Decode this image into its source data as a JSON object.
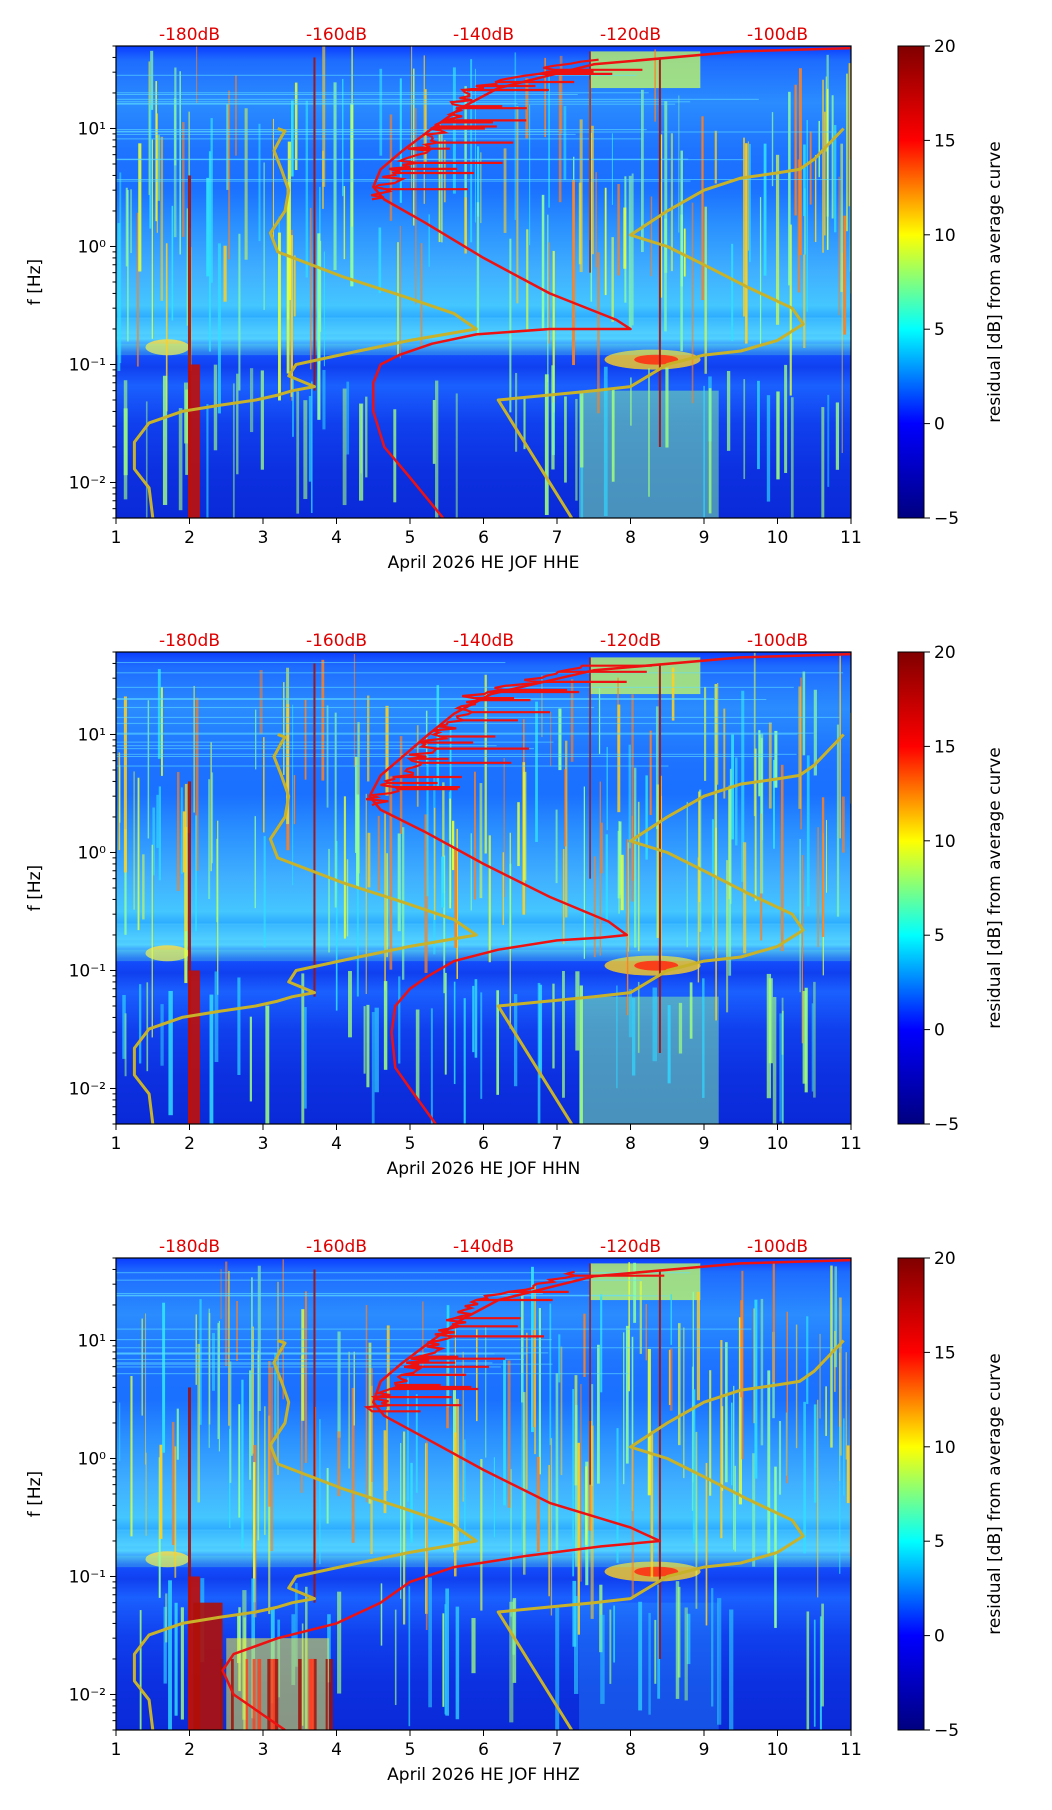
{
  "colormap": {
    "name": "jet",
    "stops": [
      "#000080",
      "#0000ff",
      "#00ffff",
      "#ffff00",
      "#ff0000",
      "#800000"
    ]
  },
  "colors": {
    "average_curve": "#ee1111",
    "model_curves": "#c8b22a",
    "db_labels": "#e00000"
  },
  "chart_data": [
    {
      "type": "heatmap",
      "title": "April 2026 HE JOF  HHE",
      "xlabel": "April 2026 HE JOF  HHE",
      "ylabel": "f [Hz]",
      "xlim": [
        1,
        11
      ],
      "ylim": [
        0.005,
        50
      ],
      "yscale": "log",
      "xticks": [
        1,
        2,
        3,
        4,
        5,
        6,
        7,
        8,
        9,
        10,
        11
      ],
      "xtick_labels": [
        "1",
        "2",
        "3",
        "4",
        "5",
        "6",
        "7",
        "8",
        "9",
        "10",
        "11"
      ],
      "yticks": [
        0.01,
        0.1,
        1,
        10
      ],
      "ytick_labels": [
        "10⁻²",
        "10⁻¹",
        "10⁰",
        "10¹"
      ],
      "db_scale_labels": [
        "-180dB",
        "-160dB",
        "-140dB",
        "-120dB",
        "-100dB"
      ],
      "db_scale_positions": [
        2,
        4,
        6,
        8,
        10
      ],
      "colorbar": {
        "label": "residual [dB] from average curve",
        "range": [
          -5,
          20
        ],
        "ticks": [
          -5,
          0,
          5,
          10,
          15,
          20
        ],
        "tick_labels": [
          "−5",
          "0",
          "5",
          "10",
          "15",
          "20"
        ]
      },
      "average_curve": {
        "x": [
          5.45,
          5.0,
          4.65,
          4.5,
          4.5,
          4.6,
          4.85,
          5.3,
          5.9,
          6.9,
          7.6,
          8.0,
          7.8,
          6.9,
          6.0,
          5.2,
          4.65,
          4.5,
          4.6,
          4.9,
          5.3,
          5.7,
          6.2,
          7.5,
          9.5,
          11.0
        ],
        "f": [
          0.005,
          0.011,
          0.02,
          0.04,
          0.07,
          0.1,
          0.12,
          0.15,
          0.18,
          0.2,
          0.2,
          0.2,
          0.24,
          0.4,
          0.8,
          1.6,
          2.5,
          3.2,
          4.5,
          6.5,
          10,
          15,
          22,
          35,
          45,
          48
        ]
      },
      "model_curves": [
        {
          "name": "low noise model",
          "x": [
            1.5,
            1.45,
            1.25,
            1.25,
            1.45,
            1.9,
            2.4,
            2.9,
            3.2,
            3.4,
            3.7,
            3.35,
            3.45,
            4.3,
            5.0,
            5.9,
            5.6,
            4.9,
            4.1,
            3.2,
            3.1,
            3.3,
            3.35,
            3.25,
            3.15,
            3.25,
            3.3,
            3.2
          ],
          "f": [
            0.005,
            0.009,
            0.013,
            0.022,
            0.032,
            0.04,
            0.045,
            0.05,
            0.055,
            0.06,
            0.065,
            0.08,
            0.1,
            0.13,
            0.16,
            0.2,
            0.27,
            0.38,
            0.55,
            0.9,
            1.3,
            2.0,
            3.0,
            4.5,
            6.5,
            8.5,
            9.5,
            10
          ]
        },
        {
          "name": "high noise model",
          "x": [
            7.2,
            6.2,
            7.5,
            8.0,
            8.5,
            9.0,
            9.5,
            10.0,
            10.35,
            10.2,
            9.6,
            9.0,
            8.5,
            8.0,
            8.5,
            9.0,
            9.5,
            10.0,
            10.3,
            10.5,
            10.9
          ],
          "f": [
            0.005,
            0.05,
            0.06,
            0.065,
            0.1,
            0.12,
            0.13,
            0.16,
            0.22,
            0.3,
            0.45,
            0.7,
            1.0,
            1.25,
            2.0,
            3.0,
            3.8,
            4.2,
            4.5,
            5.5,
            10
          ]
        }
      ]
    },
    {
      "type": "heatmap",
      "title": "April 2026 HE JOF  HHN",
      "xlabel": "April 2026 HE JOF  HHN",
      "ylabel": "f [Hz]",
      "xlim": [
        1,
        11
      ],
      "ylim": [
        0.005,
        50
      ],
      "yscale": "log",
      "xticks": [
        1,
        2,
        3,
        4,
        5,
        6,
        7,
        8,
        9,
        10,
        11
      ],
      "xtick_labels": [
        "1",
        "2",
        "3",
        "4",
        "5",
        "6",
        "7",
        "8",
        "9",
        "10",
        "11"
      ],
      "yticks": [
        0.01,
        0.1,
        1,
        10
      ],
      "ytick_labels": [
        "10⁻²",
        "10⁻¹",
        "10⁰",
        "10¹"
      ],
      "db_scale_labels": [
        "-180dB",
        "-160dB",
        "-140dB",
        "-120dB",
        "-100dB"
      ],
      "db_scale_positions": [
        2,
        4,
        6,
        8,
        10
      ],
      "colorbar": {
        "label": "residual [dB] from average curve",
        "range": [
          -5,
          20
        ],
        "ticks": [
          -5,
          0,
          5,
          10,
          15,
          20
        ],
        "tick_labels": [
          "−5",
          "0",
          "5",
          "10",
          "15",
          "20"
        ]
      },
      "average_curve": {
        "x": [
          5.35,
          5.0,
          4.8,
          4.75,
          4.8,
          5.0,
          5.25,
          5.6,
          6.2,
          7.0,
          7.6,
          7.95,
          7.7,
          6.9,
          6.0,
          5.2,
          4.6,
          4.45,
          4.6,
          4.9,
          5.25,
          5.6,
          6.1,
          7.5,
          9.5,
          11.0
        ],
        "f": [
          0.005,
          0.01,
          0.015,
          0.03,
          0.05,
          0.07,
          0.09,
          0.12,
          0.15,
          0.18,
          0.19,
          0.2,
          0.26,
          0.42,
          0.8,
          1.5,
          2.3,
          3.0,
          4.5,
          6.5,
          10,
          15,
          22,
          35,
          45,
          48
        ]
      },
      "model_curves": [
        {
          "name": "low noise model",
          "x": [
            1.5,
            1.45,
            1.25,
            1.25,
            1.45,
            1.9,
            2.4,
            2.9,
            3.2,
            3.4,
            3.7,
            3.35,
            3.45,
            4.3,
            5.0,
            5.9,
            5.6,
            4.9,
            4.1,
            3.2,
            3.1,
            3.3,
            3.35,
            3.25,
            3.15,
            3.25,
            3.3,
            3.2
          ],
          "f": [
            0.005,
            0.009,
            0.013,
            0.022,
            0.032,
            0.04,
            0.045,
            0.05,
            0.055,
            0.06,
            0.065,
            0.08,
            0.1,
            0.13,
            0.16,
            0.2,
            0.27,
            0.38,
            0.55,
            0.9,
            1.3,
            2.0,
            3.0,
            4.5,
            6.5,
            8.5,
            9.5,
            10
          ]
        },
        {
          "name": "high noise model",
          "x": [
            7.2,
            6.2,
            7.5,
            8.0,
            8.5,
            9.0,
            9.5,
            10.0,
            10.35,
            10.2,
            9.6,
            9.0,
            8.5,
            8.0,
            8.5,
            9.0,
            9.5,
            10.0,
            10.3,
            10.5,
            10.9
          ],
          "f": [
            0.005,
            0.05,
            0.06,
            0.065,
            0.1,
            0.12,
            0.13,
            0.16,
            0.22,
            0.3,
            0.45,
            0.7,
            1.0,
            1.25,
            2.0,
            3.0,
            3.8,
            4.2,
            4.5,
            5.5,
            10
          ]
        }
      ]
    },
    {
      "type": "heatmap",
      "title": "April 2026 HE JOF  HHZ",
      "xlabel": "April 2026 HE JOF  HHZ",
      "ylabel": "f [Hz]",
      "xlim": [
        1,
        11
      ],
      "ylim": [
        0.005,
        50
      ],
      "yscale": "log",
      "xticks": [
        1,
        2,
        3,
        4,
        5,
        6,
        7,
        8,
        9,
        10,
        11
      ],
      "xtick_labels": [
        "1",
        "2",
        "3",
        "4",
        "5",
        "6",
        "7",
        "8",
        "9",
        "10",
        "11"
      ],
      "yticks": [
        0.01,
        0.1,
        1,
        10
      ],
      "ytick_labels": [
        "10⁻²",
        "10⁻¹",
        "10⁰",
        "10¹"
      ],
      "db_scale_labels": [
        "-180dB",
        "-160dB",
        "-140dB",
        "-120dB",
        "-100dB"
      ],
      "db_scale_positions": [
        2,
        4,
        6,
        8,
        10
      ],
      "colorbar": {
        "label": "residual [dB] from average curve",
        "range": [
          -5,
          20
        ],
        "ticks": [
          -5,
          0,
          5,
          10,
          15,
          20
        ],
        "tick_labels": [
          "−5",
          "0",
          "5",
          "10",
          "15",
          "20"
        ]
      },
      "average_curve": {
        "x": [
          3.3,
          2.6,
          2.45,
          2.6,
          3.2,
          4.0,
          4.6,
          5.0,
          5.6,
          6.6,
          7.6,
          8.4,
          8.0,
          6.9,
          6.0,
          5.2,
          4.65,
          4.5,
          4.6,
          4.9,
          5.3,
          5.7,
          6.2,
          7.5,
          9.5,
          11.0
        ],
        "f": [
          0.005,
          0.01,
          0.016,
          0.022,
          0.03,
          0.04,
          0.06,
          0.09,
          0.12,
          0.15,
          0.18,
          0.2,
          0.26,
          0.42,
          0.8,
          1.5,
          2.3,
          3.0,
          4.5,
          6.5,
          10,
          15,
          22,
          35,
          45,
          48
        ]
      },
      "model_curves": [
        {
          "name": "low noise model",
          "x": [
            1.5,
            1.45,
            1.25,
            1.25,
            1.45,
            1.9,
            2.4,
            2.9,
            3.2,
            3.4,
            3.7,
            3.35,
            3.45,
            4.3,
            5.0,
            5.9,
            5.6,
            4.9,
            4.1,
            3.2,
            3.1,
            3.3,
            3.35,
            3.25,
            3.15,
            3.25,
            3.3,
            3.2
          ],
          "f": [
            0.005,
            0.009,
            0.013,
            0.022,
            0.032,
            0.04,
            0.045,
            0.05,
            0.055,
            0.06,
            0.065,
            0.08,
            0.1,
            0.13,
            0.16,
            0.2,
            0.27,
            0.38,
            0.55,
            0.9,
            1.3,
            2.0,
            3.0,
            4.5,
            6.5,
            8.5,
            9.5,
            10
          ]
        },
        {
          "name": "high noise model",
          "x": [
            7.2,
            6.2,
            7.5,
            8.0,
            8.5,
            9.0,
            9.5,
            10.0,
            10.35,
            10.2,
            9.6,
            9.0,
            8.5,
            8.0,
            8.5,
            9.0,
            9.5,
            10.0,
            10.3,
            10.5,
            10.9
          ],
          "f": [
            0.005,
            0.05,
            0.06,
            0.065,
            0.1,
            0.12,
            0.13,
            0.16,
            0.22,
            0.3,
            0.45,
            0.7,
            1.0,
            1.25,
            2.0,
            3.0,
            3.8,
            4.2,
            4.5,
            5.5,
            10
          ]
        }
      ]
    }
  ]
}
